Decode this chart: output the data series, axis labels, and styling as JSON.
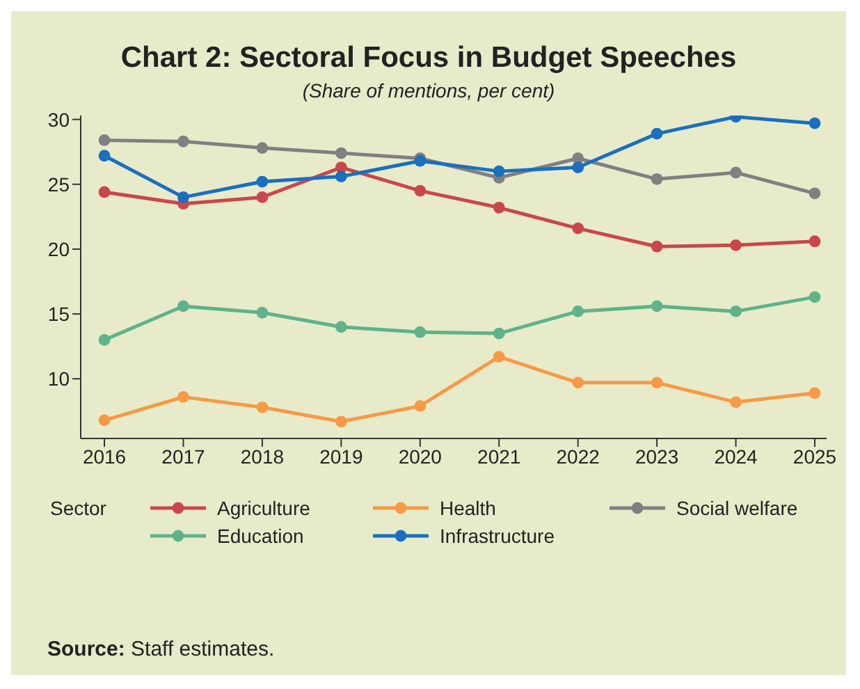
{
  "chart_data": {
    "type": "line",
    "title": "Chart 2: Sectoral Focus in Budget Speeches",
    "subtitle": "(Share of mentions, per cent)",
    "legend_title": "Sector",
    "categories": [
      "2016",
      "2017",
      "2018",
      "2019",
      "2020",
      "2021",
      "2022",
      "2023",
      "2024",
      "2025"
    ],
    "series": [
      {
        "name": "Agriculture",
        "color": "#c9474b",
        "values": [
          24.4,
          23.5,
          24.0,
          26.3,
          24.5,
          23.2,
          21.6,
          20.2,
          20.3,
          20.6
        ]
      },
      {
        "name": "Health",
        "color": "#f79a45",
        "values": [
          6.8,
          8.6,
          7.8,
          6.7,
          7.9,
          11.7,
          9.7,
          9.7,
          8.2,
          8.9
        ]
      },
      {
        "name": "Social welfare",
        "color": "#808080",
        "values": [
          28.4,
          28.3,
          27.8,
          27.4,
          27.0,
          25.5,
          27.0,
          25.4,
          25.9,
          24.3
        ]
      },
      {
        "name": "Education",
        "color": "#5eb38a",
        "values": [
          13.0,
          15.6,
          15.1,
          14.0,
          13.6,
          13.5,
          15.2,
          15.6,
          15.2,
          16.3
        ]
      },
      {
        "name": "Infrastructure",
        "color": "#1a6fbf",
        "values": [
          27.2,
          24.0,
          25.2,
          25.6,
          26.8,
          26.0,
          26.3,
          28.9,
          30.2,
          29.7
        ]
      }
    ],
    "ylim": [
      5.4,
      30.3
    ],
    "yticks": [
      10,
      15,
      20,
      25,
      30
    ],
    "grid": false,
    "legend": "bottom",
    "marker": "circle",
    "line_style": "solid",
    "annotations": [
      "Source: Staff estimates."
    ]
  }
}
